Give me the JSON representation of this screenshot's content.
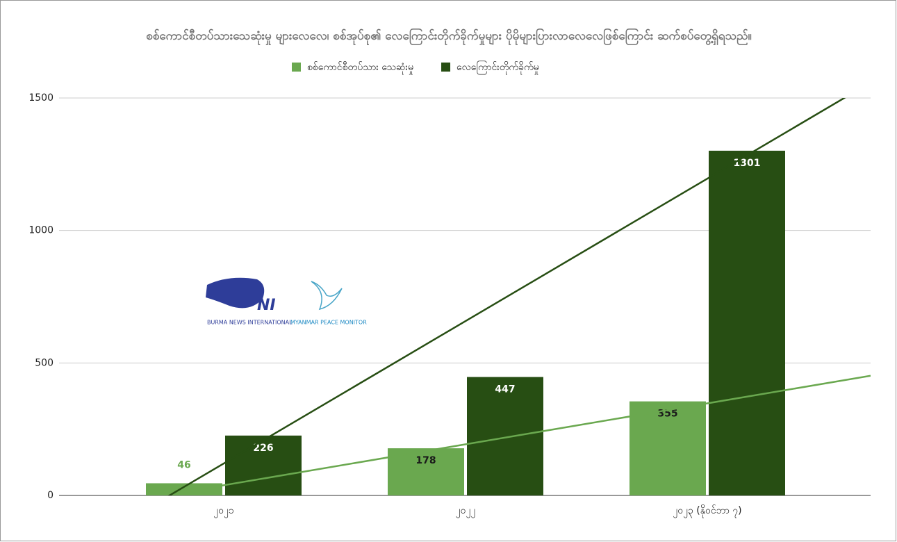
{
  "chart_data": {
    "type": "bar",
    "title": "စစ်ကောင်စီတပ်သားသေဆုံးမှု များလေလေ၊ စစ်အုပ်စု၏ လေကြောင်းတိုက်ခိုက်မှုများ ပိုမိုများပြားလာလေလေဖြစ်ကြောင်း ဆက်စပ်တွေ့ရှိရသည်။",
    "categories": [
      "၂၀၂၁",
      "၂၀၂၂",
      "၂၀၂၃ (နိုဝင်ဘာ ၇)"
    ],
    "series": [
      {
        "name": "စစ်ကောင်စီတပ်သား သေဆုံးမှု",
        "color": "#6aa84f",
        "values": [
          46,
          178,
          355
        ]
      },
      {
        "name": "လေကြောင်းတိုက်ခိုက်မှု",
        "color": "#274e13",
        "values": [
          226,
          447,
          1301
        ]
      }
    ],
    "ylim": [
      0,
      1500
    ],
    "yticks": [
      0,
      500,
      1000,
      1500
    ],
    "grid": true,
    "trendline": true,
    "logos": [
      "NI",
      "BURMA NEWS INTERNATIONAL",
      "MYANMAR PEACE MONITOR"
    ]
  }
}
